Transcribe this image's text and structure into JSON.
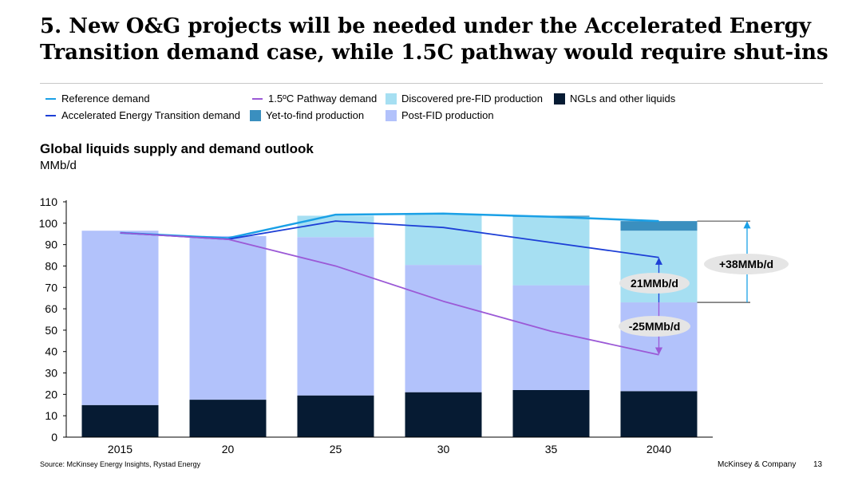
{
  "header": {
    "title": "5. New O&G projects will be needed under the Accelerated Energy Transition demand case, while 1.5C pathway would require shut-ins"
  },
  "legend": [
    {
      "label": "Reference demand",
      "kind": "line",
      "color": "#1aa0e6"
    },
    {
      "label": "Accelerated Energy Transition demand",
      "kind": "line",
      "color": "#1d3fd6"
    },
    {
      "label": "1.5ºC Pathway demand",
      "kind": "line",
      "color": "#9b59d6"
    },
    {
      "label": "Yet-to-find production",
      "kind": "box",
      "color": "#3a8fbf"
    },
    {
      "label": "Discovered pre-FID production",
      "kind": "box",
      "color": "#a6dff2"
    },
    {
      "label": "Post-FID production",
      "kind": "box",
      "color": "#b2c2fb"
    },
    {
      "label": "NGLs and other liquids",
      "kind": "box",
      "color": "#061b33"
    }
  ],
  "chart_data": {
    "type": "bar",
    "title": "Global liquids supply and demand outlook",
    "ylabel": "MMb/d",
    "categories": [
      "2015",
      "20",
      "25",
      "30",
      "35",
      "2040"
    ],
    "ylim": [
      0,
      110
    ],
    "yticks": [
      0,
      10,
      20,
      30,
      40,
      50,
      60,
      70,
      80,
      90,
      100,
      110
    ],
    "stacked_series": [
      {
        "name": "NGLs and other liquids",
        "color": "#061b33",
        "values": [
          15,
          17.5,
          19.5,
          21,
          22,
          21.5
        ]
      },
      {
        "name": "Post-FID production",
        "color": "#b2c2fb",
        "values": [
          81.5,
          76.5,
          74,
          59.5,
          49,
          41.5
        ]
      },
      {
        "name": "Discovered pre-FID production",
        "color": "#a6dff2",
        "values": [
          0,
          0,
          10,
          23.5,
          32,
          33.5
        ]
      },
      {
        "name": "Yet-to-find production",
        "color": "#3a8fbf",
        "values": [
          0,
          0,
          0,
          0,
          0.5,
          4.5
        ]
      }
    ],
    "line_series": [
      {
        "name": "Reference demand",
        "color": "#1aa0e6",
        "values": [
          95.5,
          93,
          104,
          104.5,
          103,
          101
        ]
      },
      {
        "name": "Accelerated Energy Transition demand",
        "color": "#1d3fd6",
        "values": [
          95.5,
          92.5,
          101,
          98,
          91,
          84
        ]
      },
      {
        "name": "1.5ºC Pathway demand",
        "color": "#9b59d6",
        "values": [
          95.5,
          92.5,
          80,
          63.5,
          49.5,
          38.5
        ]
      }
    ],
    "annotations": [
      {
        "label": "+38MMb/d"
      },
      {
        "label": "21MMb/d"
      },
      {
        "label": "-25MMb/d"
      }
    ]
  },
  "footer": {
    "source": "Source: McKinsey Energy Insights, Rystad Energy",
    "company": "McKinsey & Company",
    "page": "13"
  }
}
